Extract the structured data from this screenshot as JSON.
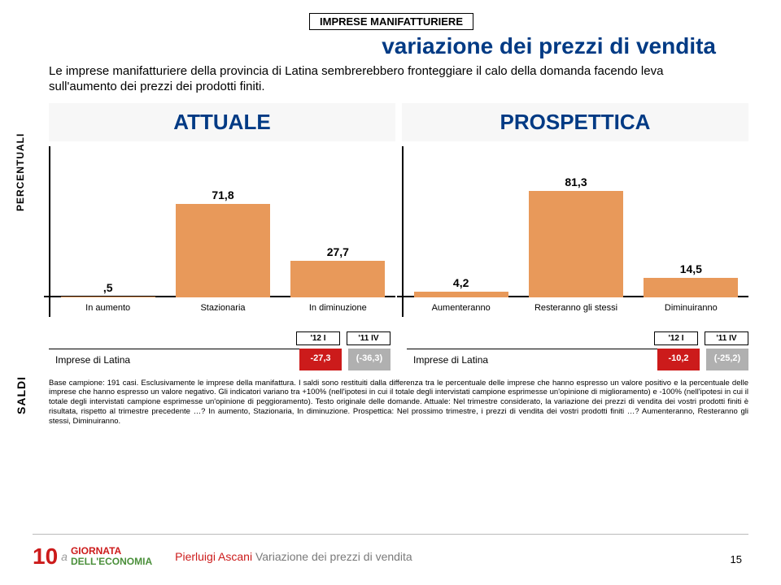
{
  "header_box": "IMPRESE MANIFATTURIERE",
  "title": "variazione dei prezzi di vendita",
  "intro": "Le imprese manifatturiere della provincia di Latina sembrerebbero fronteggiare il calo della domanda facendo leva sull'aumento dei prezzi dei prodotti finiti.",
  "section_left": "ATTUALE",
  "section_right": "PROSPETTICA",
  "ylabel": "PERCENTUALI",
  "ylabel2": "SALDI",
  "chart": {
    "bar_color": "#e8995a",
    "max": 100,
    "left": {
      "cats": [
        "In aumento",
        "Stazionaria",
        "In diminuzione"
      ],
      "vals": [
        0.5,
        71.8,
        27.7
      ],
      "val_labels": [
        ",5",
        "71,8",
        "27,7"
      ]
    },
    "right": {
      "cats": [
        "Aumenteranno",
        "Resteranno gli stessi",
        "Diminuiranno"
      ],
      "vals": [
        4.2,
        81.3,
        14.5
      ],
      "val_labels": [
        "4,2",
        "81,3",
        "14,5"
      ]
    }
  },
  "saldi": {
    "head1": "'12 I",
    "head2": "'11 IV",
    "label": "Imprese di Latina",
    "left": {
      "v1": "-27,3",
      "v2": "(-36,3)",
      "c1": "#cc1b1b",
      "c2": "#b0b0b0"
    },
    "right": {
      "v1": "-10,2",
      "v2": "(-25,2)",
      "c1": "#cc1b1b",
      "c2": "#b0b0b0"
    }
  },
  "footnote": "Base campione: 191 casi. Esclusivamente le imprese della manifattura. I saldi sono restituiti dalla differenza tra le percentuale delle imprese che hanno espresso un valore positivo e la percentuale delle imprese che hanno espresso un valore negativo. Gli indicatori variano tra +100% (nell'ipotesi in cui il totale degli intervistati campione esprimesse un'opinione di miglioramento) e -100% (nell'ipotesi in cui il totale degli intervistati campione esprimesse un'opinione di peggioramento). Testo originale delle domande. Attuale: Nel trimestre considerato, la variazione dei prezzi di vendita dei vostri prodotti finiti è risultata, rispetto al trimestre precedente …? In aumento, Stazionaria, In diminuzione. Prospettica: Nel prossimo trimestre, i prezzi di vendita dei vostri prodotti finiti …? Aumenteranno, Resteranno gli stessi, Diminuiranno.",
  "footer": {
    "logo_num": "10",
    "logo_sup": "a",
    "logo_l1": "GIORNATA",
    "logo_l2": "DELL'ECONOMIA",
    "author": "Pierluigi Ascani",
    "subject": "Variazione dei prezzi di vendita",
    "page": "15"
  }
}
